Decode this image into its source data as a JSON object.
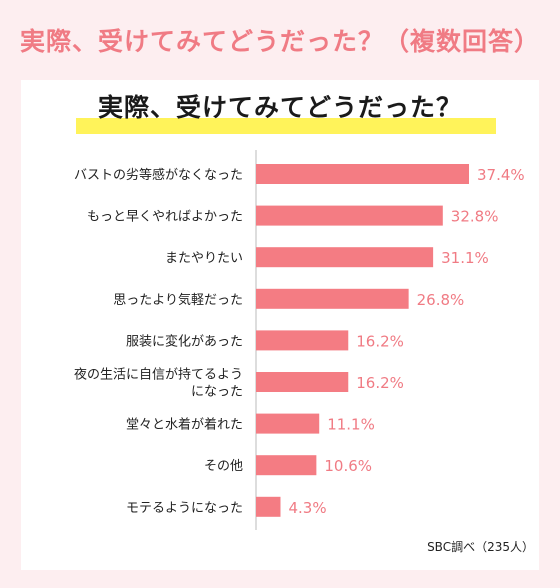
{
  "header": {
    "title": "実際、受けてみてどうだった？（複数回答）"
  },
  "chart_title": "実際、受けてみてどうだった？",
  "source_note": "SBC調べ（235人）",
  "colors": {
    "bar": "#f47c83",
    "value_text": "#f07b84",
    "header_text": "#f07b84",
    "background": "#fdeef0"
  },
  "chart_data": {
    "type": "bar",
    "orientation": "horizontal",
    "title": "実際、受けてみてどうだった？",
    "categories": [
      [
        "バストの劣等感がなくなった"
      ],
      [
        "もっと早くやればよかった"
      ],
      [
        "またやりたい"
      ],
      [
        "思ったより気軽だった"
      ],
      [
        "服装に変化があった"
      ],
      [
        "夜の生活に自信が持てるよう",
        "になった"
      ],
      [
        "堂々と水着が着れた"
      ],
      [
        "その他"
      ],
      [
        "モテるようになった"
      ]
    ],
    "values": [
      37.4,
      32.8,
      31.1,
      26.8,
      16.2,
      16.2,
      11.1,
      10.6,
      4.3
    ],
    "value_unit": "%",
    "xlim": [
      0,
      40
    ]
  }
}
